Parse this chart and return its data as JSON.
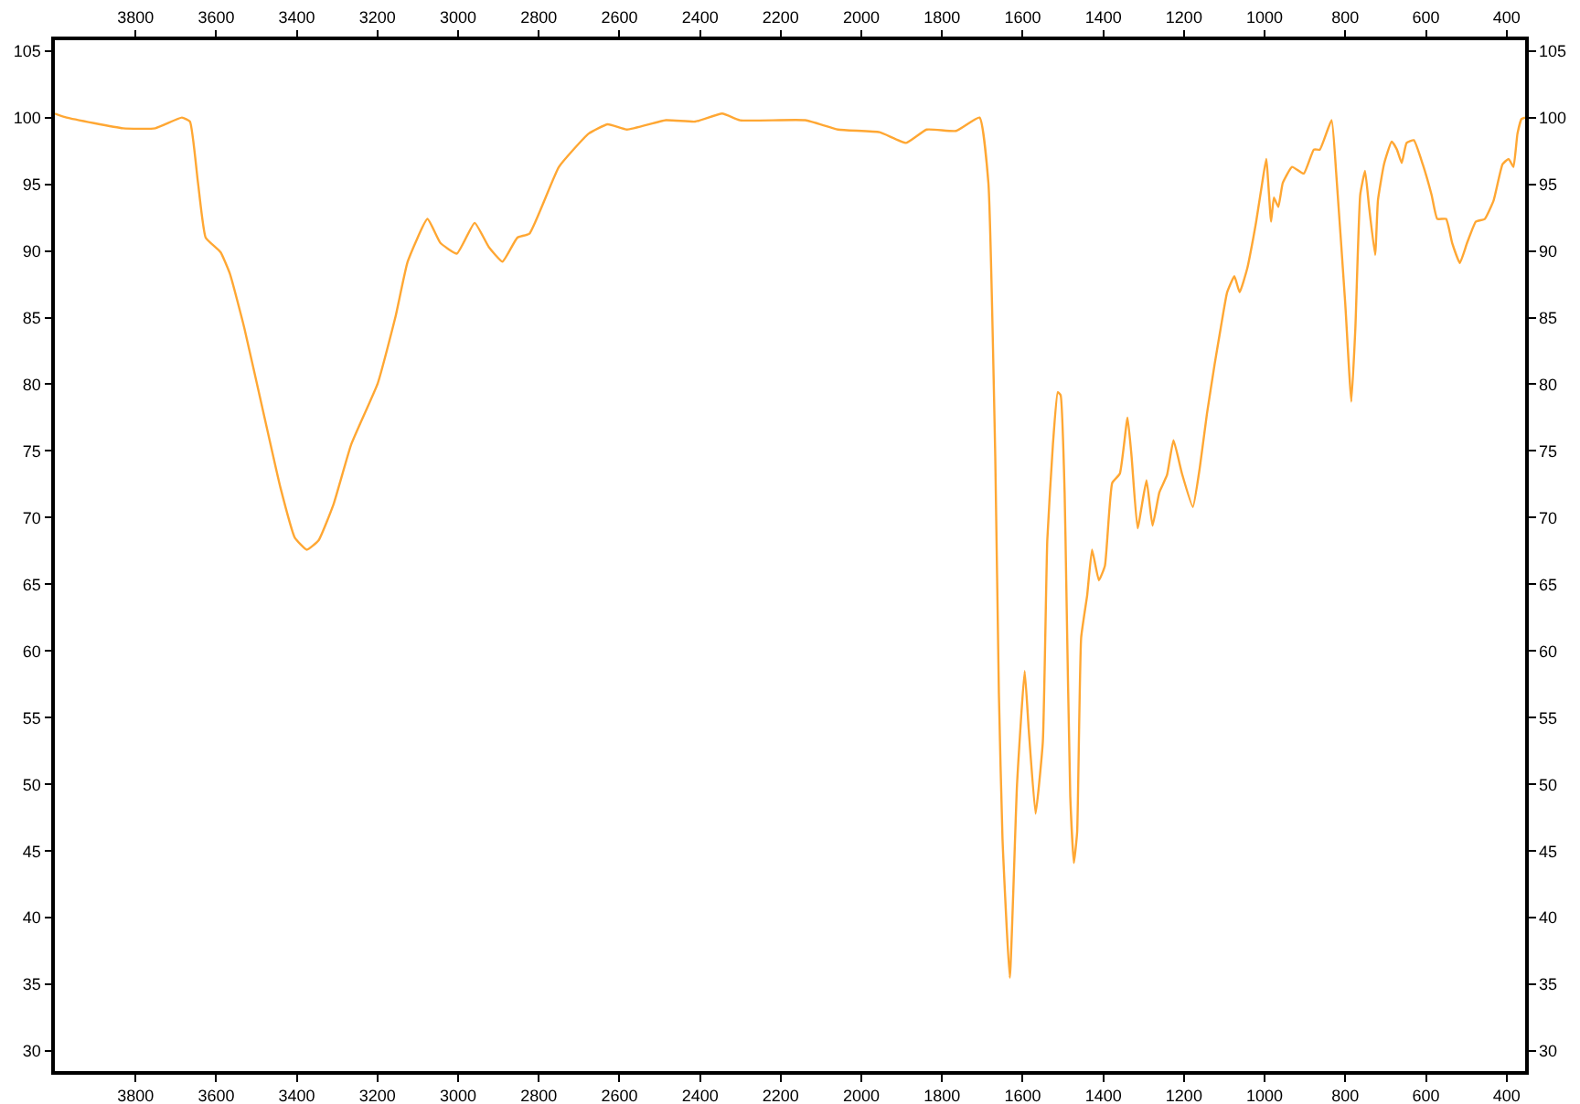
{
  "chart_data": {
    "type": "line",
    "x": [
      4000,
      3971,
      3831,
      3751,
      3685,
      3665,
      3645,
      3626,
      3589,
      3566,
      3530,
      3486,
      3441,
      3405,
      3375,
      3346,
      3309,
      3265,
      3199,
      3155,
      3125,
      3076,
      3044,
      3003,
      2959,
      2924,
      2890,
      2853,
      2823,
      2750,
      2676,
      2629,
      2581,
      2485,
      2412,
      2345,
      2301,
      2139,
      2058,
      1955,
      1889,
      1838,
      1765,
      1707,
      1685,
      1668,
      1659,
      1650,
      1632,
      1614,
      1595,
      1585,
      1568,
      1550,
      1539,
      1525,
      1513,
      1506,
      1496,
      1492,
      1482,
      1473,
      1465,
      1455,
      1440,
      1428,
      1411,
      1396,
      1378,
      1359,
      1340,
      1330,
      1315,
      1293,
      1278,
      1261,
      1242,
      1226,
      1205,
      1178,
      1161,
      1143,
      1124,
      1109,
      1093,
      1075,
      1062,
      1043,
      1028,
      1021,
      1006,
      996,
      984,
      977,
      966,
      955,
      932,
      903,
      878,
      863,
      834,
      822,
      800,
      785,
      775,
      763,
      751,
      741,
      726,
      719,
      704,
      685,
      672,
      660,
      648,
      630,
      608,
      586,
      572,
      550,
      535,
      516,
      498,
      476,
      454,
      432,
      410,
      395,
      383,
      373,
      363,
      354
    ],
    "series": [
      {
        "color": "#ffa733",
        "values": [
          100.3,
          100.0,
          99.2,
          99.2,
          100.0,
          99.7,
          95.1,
          91.0,
          89.9,
          88.3,
          84.2,
          78.3,
          72.3,
          68.5,
          67.6,
          68.3,
          71.0,
          75.5,
          80.1,
          85.1,
          89.2,
          92.4,
          90.6,
          89.8,
          92.1,
          90.3,
          89.2,
          91.0,
          91.3,
          96.3,
          98.8,
          99.5,
          99.1,
          99.8,
          99.7,
          100.3,
          99.8,
          99.8,
          99.1,
          98.9,
          98.1,
          99.1,
          99.0,
          100.0,
          95.1,
          74.6,
          56.8,
          45.9,
          35.5,
          50.0,
          58.5,
          54.1,
          47.8,
          53.2,
          68.3,
          75.5,
          79.4,
          79.2,
          71.9,
          65.3,
          49.1,
          44.1,
          46.4,
          61.0,
          64.2,
          67.6,
          65.3,
          66.4,
          72.6,
          73.3,
          77.5,
          74.6,
          69.2,
          72.8,
          69.4,
          71.9,
          73.2,
          75.8,
          73.3,
          70.8,
          73.7,
          77.8,
          81.5,
          84.2,
          86.9,
          88.1,
          86.9,
          88.7,
          91.0,
          92.2,
          95.1,
          96.9,
          92.2,
          94.0,
          93.3,
          95.1,
          96.3,
          95.8,
          97.6,
          97.6,
          99.8,
          95.6,
          86.0,
          78.7,
          84.2,
          94.2,
          96.0,
          93.3,
          89.7,
          93.8,
          96.5,
          98.2,
          97.6,
          96.6,
          98.1,
          98.3,
          96.5,
          94.2,
          92.4,
          92.4,
          90.6,
          89.1,
          90.6,
          92.2,
          92.4,
          93.8,
          96.5,
          96.9,
          96.3,
          98.8,
          99.9,
          100.0
        ]
      }
    ],
    "xlim": [
      4000,
      354
    ],
    "xticks": [
      3800,
      3600,
      3400,
      3200,
      3000,
      2800,
      2600,
      2400,
      2200,
      2000,
      1800,
      1600,
      1400,
      1200,
      1000,
      800,
      600,
      400
    ],
    "x2lim": [
      4000,
      354
    ],
    "x2ticks": [
      3800,
      3600,
      3400,
      3200,
      3000,
      2800,
      2600,
      2400,
      2200,
      2000,
      1800,
      1600,
      1400,
      1200,
      1000,
      800,
      600,
      400
    ],
    "ylim": [
      28.5,
      105.8
    ],
    "yticks": [
      30,
      35,
      40,
      45,
      50,
      55,
      60,
      65,
      70,
      75,
      80,
      85,
      90,
      95,
      100,
      105
    ],
    "y2lim": [
      28.5,
      105.8
    ],
    "y2ticks": [
      30,
      35,
      40,
      45,
      50,
      55,
      60,
      65,
      70,
      75,
      80,
      85,
      90,
      95,
      100,
      105
    ]
  }
}
